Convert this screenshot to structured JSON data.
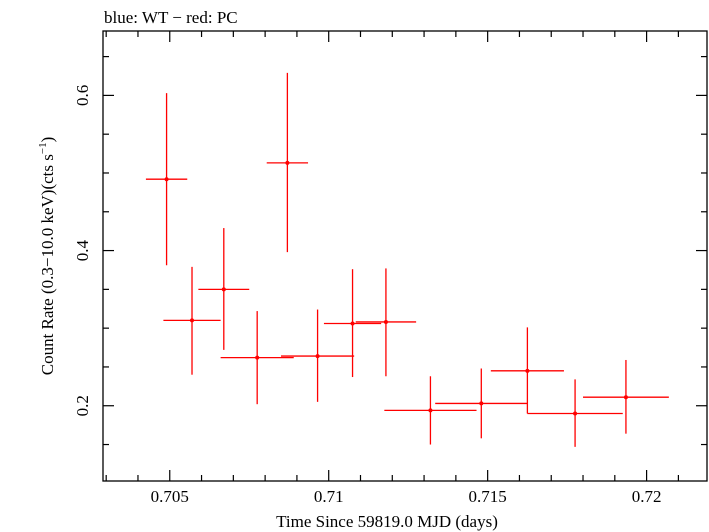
{
  "header": {
    "title": "blue: WT − red: PC"
  },
  "chart_data": {
    "type": "scatter",
    "title": "blue: WT − red: PC",
    "xlabel": "Time Since 59819.0 MJD (days)",
    "ylabel_main": "Count Rate (0.3−10.0 keV)(cts s",
    "ylabel_sup": "−1",
    "ylabel_close": ")",
    "xlim": [
      0.7029,
      0.7219
    ],
    "ylim": [
      0.103,
      0.683
    ],
    "x_ticks": [
      0.705,
      0.71,
      0.715,
      0.72
    ],
    "x_tick_labels": [
      "0.705",
      "0.71",
      "0.715",
      "0.72"
    ],
    "y_ticks": [
      0.2,
      0.4,
      0.6
    ],
    "y_tick_labels": [
      "0.2",
      "0.4",
      "0.6"
    ],
    "grid": false,
    "series": [
      {
        "color": "#ff0000",
        "points": [
          {
            "x": 0.7049,
            "y": 0.492,
            "xerr": 0.00065,
            "ylo": 0.381,
            "yhi": 0.603
          },
          {
            "x": 0.7057,
            "y": 0.31,
            "xerr": 0.0009,
            "ylo": 0.24,
            "yhi": 0.379
          },
          {
            "x": 0.7067,
            "y": 0.35,
            "xerr": 0.0008,
            "ylo": 0.272,
            "yhi": 0.429
          },
          {
            "x": 0.70775,
            "y": 0.262,
            "xerr": 0.00115,
            "ylo": 0.202,
            "yhi": 0.322
          },
          {
            "x": 0.7087,
            "y": 0.513,
            "xerr": 0.00065,
            "ylo": 0.398,
            "yhi": 0.629
          },
          {
            "x": 0.70965,
            "y": 0.264,
            "xerr": 0.00115,
            "ylo": 0.205,
            "yhi": 0.324
          },
          {
            "x": 0.71075,
            "y": 0.306,
            "xerr": 0.0009,
            "ylo": 0.237,
            "yhi": 0.376
          },
          {
            "x": 0.7118,
            "y": 0.308,
            "xerr": 0.00095,
            "ylo": 0.238,
            "yhi": 0.377
          },
          {
            "x": 0.7132,
            "y": 0.194,
            "xerr": 0.00145,
            "ylo": 0.15,
            "yhi": 0.238
          },
          {
            "x": 0.7148,
            "y": 0.203,
            "xerr": 0.00145,
            "ylo": 0.158,
            "yhi": 0.248
          },
          {
            "x": 0.71625,
            "y": 0.245,
            "xerr": 0.00115,
            "ylo": 0.19,
            "yhi": 0.301
          },
          {
            "x": 0.71775,
            "y": 0.19,
            "xerr": 0.0015,
            "ylo": 0.147,
            "yhi": 0.234
          },
          {
            "x": 0.71935,
            "y": 0.211,
            "xerr": 0.00135,
            "ylo": 0.164,
            "yhi": 0.259
          }
        ]
      }
    ]
  }
}
